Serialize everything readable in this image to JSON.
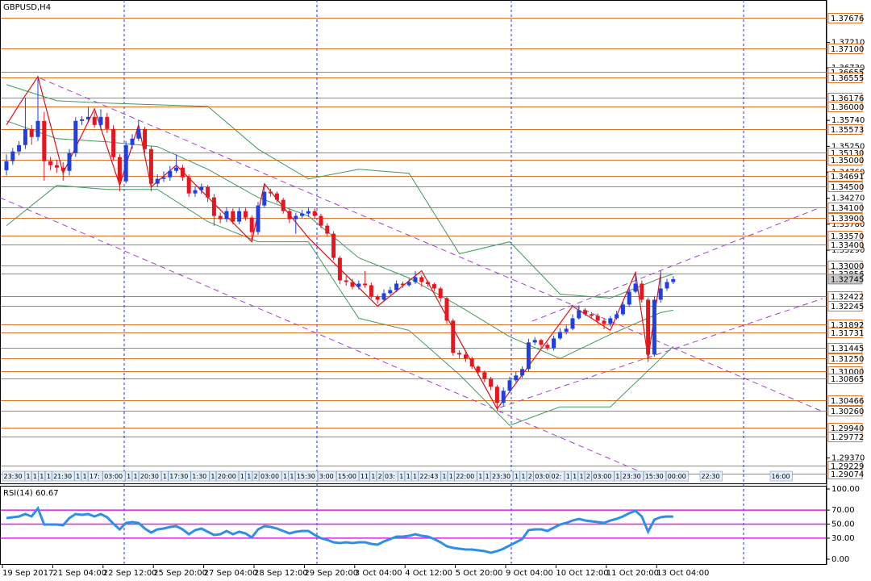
{
  "chart_data": [
    {
      "type": "candlestick",
      "title": "GBPUSD,H4",
      "categories": [
        "19 Sep 2017",
        null,
        null,
        null,
        null,
        null,
        null,
        null,
        "21 Sep 04:00",
        null,
        null,
        null,
        null,
        null,
        null,
        null,
        "22 Sep 12:00",
        null,
        null,
        null,
        null,
        null,
        null,
        null,
        "25 Sep 20:00",
        null,
        null,
        null,
        null,
        null,
        null,
        null,
        "27 Sep 04:00",
        null,
        null,
        null,
        null,
        null,
        null,
        null,
        "28 Sep 12:00",
        null,
        null,
        null,
        null,
        null,
        null,
        null,
        "29 Sep 20:00",
        null,
        null,
        null,
        null,
        null,
        null,
        null,
        "3 Oct 04:00",
        null,
        null,
        null,
        null,
        null,
        null,
        null,
        "4 Oct 12:00",
        null,
        null,
        null,
        null,
        null,
        null,
        null,
        "5 Oct 20:00",
        null,
        null,
        null,
        null,
        null,
        null,
        null,
        "9 Oct 04:00",
        null,
        null,
        null,
        null,
        null,
        null,
        null,
        "10 Oct 12:00",
        null,
        null,
        null,
        null,
        null,
        null,
        null,
        "11 Oct 20:00",
        null,
        null,
        null,
        null,
        null,
        null,
        null,
        "13 Oct 04:00",
        null,
        null
      ],
      "open": [
        1.348,
        1.3497,
        1.35153,
        1.35274,
        1.35578,
        1.35426,
        1.3573,
        1.3497,
        1.34894,
        1.34849,
        1.34788,
        1.35122,
        1.3573,
        1.3576,
        1.35806,
        1.35654,
        1.35806,
        1.35578,
        1.35046,
        1.3459,
        1.35274,
        1.35396,
        1.35578,
        1.35198,
        1.34545,
        1.34636,
        1.34666,
        1.34788,
        1.34849,
        1.34666,
        1.34362,
        1.34423,
        1.34484,
        1.34286,
        1.33937,
        1.33876,
        1.34028,
        1.3383,
        1.34028,
        1.33906,
        1.33633,
        1.34134,
        1.34393,
        1.34362,
        1.34241,
        1.34028,
        1.33876,
        1.33937,
        1.33982,
        1.34028,
        1.33937,
        1.33754,
        1.33602,
        1.33146,
        1.32721,
        1.3269,
        1.32599,
        1.3266,
        1.3263,
        1.32417,
        1.32356,
        1.32478,
        1.32538,
        1.3266,
        1.3263,
        1.3269,
        1.32782,
        1.3269,
        1.3265,
        1.32569,
        1.32386,
        1.31961,
        1.31353,
        1.31322,
        1.31246,
        1.31094,
        1.30988,
        1.30866,
        1.30714,
        1.3041,
        1.30638,
        1.30836,
        1.30927,
        1.31049,
        1.3155,
        1.31596,
        1.31505,
        1.31444,
        1.31626,
        1.31748,
        1.31809,
        1.32006,
        1.32158,
        1.32082,
        1.32052,
        1.31961,
        1.319,
        1.32006,
        1.32082,
        1.32265,
        1.32508,
        1.3266,
        1.32356,
        1.31322,
        1.32356,
        1.32569,
        1.3269
      ],
      "high": [
        1.351,
        1.3522,
        1.3535,
        1.3617,
        1.3565,
        1.3657,
        1.359,
        1.3505,
        1.35,
        1.3495,
        1.352,
        1.358,
        1.3582,
        1.36,
        1.359,
        1.3595,
        1.3588,
        1.3565,
        1.351,
        1.3535,
        1.3548,
        1.3575,
        1.3562,
        1.3525,
        1.3472,
        1.3478,
        1.3488,
        1.351,
        1.349,
        1.3472,
        1.345,
        1.3455,
        1.3452,
        1.3435,
        1.34,
        1.341,
        1.3408,
        1.341,
        1.341,
        1.3395,
        1.342,
        1.3452,
        1.3445,
        1.344,
        1.3428,
        1.3408,
        1.34,
        1.3405,
        1.341,
        1.3408,
        1.3398,
        1.338,
        1.3365,
        1.3318,
        1.328,
        1.3275,
        1.3272,
        1.329,
        1.3268,
        1.3245,
        1.3255,
        1.326,
        1.3272,
        1.327,
        1.3275,
        1.329,
        1.3282,
        1.3272,
        1.3268,
        1.326,
        1.3242,
        1.32,
        1.314,
        1.3138,
        1.3128,
        1.3112,
        1.3102,
        1.309,
        1.3075,
        1.307,
        1.309,
        1.31,
        1.311,
        1.3162,
        1.3165,
        1.3162,
        1.3155,
        1.3168,
        1.3182,
        1.3188,
        1.3208,
        1.3225,
        1.322,
        1.3212,
        1.321,
        1.32,
        1.3205,
        1.3215,
        1.3232,
        1.3258,
        1.3285,
        1.3272,
        1.324,
        1.3242,
        1.329,
        1.3275,
        1.328
      ],
      "low": [
        1.347,
        1.349,
        1.3508,
        1.352,
        1.3528,
        1.3535,
        1.346,
        1.348,
        1.3475,
        1.346,
        1.347,
        1.3505,
        1.3565,
        1.357,
        1.356,
        1.3555,
        1.355,
        1.3498,
        1.344,
        1.3455,
        1.352,
        1.3535,
        1.3512,
        1.344,
        1.3448,
        1.3458,
        1.346,
        1.3475,
        1.346,
        1.343,
        1.343,
        1.3435,
        1.342,
        1.3375,
        1.338,
        1.3382,
        1.3378,
        1.3378,
        1.3385,
        1.3345,
        1.3358,
        1.341,
        1.343,
        1.3418,
        1.3398,
        1.338,
        1.336,
        1.339,
        1.3392,
        1.3388,
        1.337,
        1.3355,
        1.331,
        1.3265,
        1.3262,
        1.3255,
        1.3255,
        1.3258,
        1.3238,
        1.3228,
        1.3232,
        1.3245,
        1.325,
        1.3258,
        1.326,
        1.3265,
        1.326,
        1.326,
        1.3252,
        1.3232,
        1.319,
        1.313,
        1.3125,
        1.3118,
        1.3105,
        1.3092,
        1.308,
        1.3065,
        1.3026,
        1.3035,
        1.306,
        1.308,
        1.3088,
        1.31,
        1.315,
        1.3145,
        1.314,
        1.314,
        1.316,
        1.317,
        1.3178,
        1.3198,
        1.3205,
        1.32,
        1.319,
        1.318,
        1.3185,
        1.3198,
        1.3205,
        1.3222,
        1.3248,
        1.323,
        1.3118,
        1.3128,
        1.323,
        1.3252,
        1.3265
      ],
      "close": [
        1.3497,
        1.35153,
        1.35274,
        1.35578,
        1.35426,
        1.3573,
        1.3497,
        1.34894,
        1.34849,
        1.34788,
        1.35122,
        1.3573,
        1.3576,
        1.35806,
        1.35654,
        1.35806,
        1.35578,
        1.35046,
        1.3459,
        1.35274,
        1.35396,
        1.35578,
        1.35198,
        1.34545,
        1.34636,
        1.34666,
        1.34788,
        1.34849,
        1.34666,
        1.34362,
        1.34423,
        1.34484,
        1.34286,
        1.33937,
        1.33876,
        1.34028,
        1.3383,
        1.34028,
        1.33906,
        1.33633,
        1.34134,
        1.34393,
        1.34362,
        1.34241,
        1.34028,
        1.33876,
        1.33937,
        1.33982,
        1.34028,
        1.33937,
        1.33754,
        1.33602,
        1.33146,
        1.32721,
        1.3269,
        1.32599,
        1.3266,
        1.3263,
        1.32417,
        1.32356,
        1.32478,
        1.32538,
        1.3266,
        1.3263,
        1.3269,
        1.32782,
        1.3269,
        1.3265,
        1.32569,
        1.32386,
        1.31961,
        1.31353,
        1.31322,
        1.31246,
        1.31094,
        1.30988,
        1.30866,
        1.30714,
        1.3041,
        1.30638,
        1.30836,
        1.30927,
        1.31049,
        1.3155,
        1.31596,
        1.31505,
        1.31444,
        1.31626,
        1.31748,
        1.31809,
        1.32006,
        1.32158,
        1.32082,
        1.32052,
        1.31961,
        1.319,
        1.32006,
        1.32082,
        1.32265,
        1.32508,
        1.3266,
        1.32356,
        1.31322,
        1.32356,
        1.32569,
        1.3269,
        1.32745
      ],
      "up_color": "#1f3fe0",
      "down_color": "#e8141e",
      "ylim": [
        1.28876,
        1.38011
      ],
      "yticks": [
        {
          "value": 1.3721,
          "label": "1.37210"
        },
        {
          "value": 1.3673,
          "label": "1.36730"
        },
        {
          "value": 1.3574,
          "label": "1.35740"
        },
        {
          "value": 1.3525,
          "label": "1.35250"
        },
        {
          "value": 1.3476,
          "label": "1.34760"
        },
        {
          "value": 1.3427,
          "label": "1.34270"
        },
        {
          "value": 1.3378,
          "label": "1.33780"
        },
        {
          "value": 1.3329,
          "label": "1.33290"
        },
        {
          "value": 1.2937,
          "label": "1.29370"
        }
      ],
      "levels": [
        {
          "value": 1.37676,
          "label": "1.37676"
        },
        {
          "value": 1.371,
          "label": "1.37100"
        },
        {
          "value": 1.36655,
          "label": "1.36655"
        },
        {
          "value": 1.36555,
          "label": "1.36555"
        },
        {
          "value": 1.36176,
          "label": "1.36176"
        },
        {
          "value": 1.36,
          "label": "1.36000"
        },
        {
          "value": 1.35573,
          "label": "1.35573"
        },
        {
          "value": 1.3513,
          "label": "1.35130"
        },
        {
          "value": 1.35,
          "label": "1.35000"
        },
        {
          "value": 1.34691,
          "label": "1.34691"
        },
        {
          "value": 1.345,
          "label": "1.34500"
        },
        {
          "value": 1.341,
          "label": "1.34100"
        },
        {
          "value": 1.339,
          "label": "1.33900"
        },
        {
          "value": 1.3357,
          "label": "1.33570"
        },
        {
          "value": 1.334,
          "label": "1.33400"
        },
        {
          "value": 1.33,
          "label": "1.33000"
        },
        {
          "value": 1.32856,
          "label": "1.32856"
        },
        {
          "value": 1.32422,
          "label": "1.32422"
        },
        {
          "value": 1.32245,
          "label": "1.32245"
        },
        {
          "value": 1.31892,
          "label": "1.31892"
        },
        {
          "value": 1.31731,
          "label": "1.31731"
        },
        {
          "value": 1.31445,
          "label": "1.31445"
        },
        {
          "value": 1.3125,
          "label": "1.31250"
        },
        {
          "value": 1.31,
          "label": "1.31000"
        },
        {
          "value": 1.30865,
          "label": "1.30865"
        },
        {
          "value": 1.30466,
          "label": "1.30466"
        },
        {
          "value": 1.3026,
          "label": "1.30260"
        },
        {
          "value": 1.2994,
          "label": "1.29940"
        },
        {
          "value": 1.29772,
          "label": "1.29772"
        },
        {
          "value": 1.29229,
          "label": "1.29229"
        },
        {
          "value": 1.29074,
          "label": "1.29074"
        }
      ],
      "level_color": "#d9772b",
      "current_price": {
        "value": 1.32745,
        "label": "1.32745"
      },
      "bands": {
        "x": [
          0,
          8,
          16,
          24,
          32,
          40,
          48,
          56,
          64,
          72,
          80,
          88,
          96,
          104,
          106
        ],
        "upper": [
          1.36414,
          1.3611,
          1.36065,
          1.36034,
          1.36004,
          1.35198,
          1.34636,
          1.34818,
          1.34742,
          1.33222,
          1.3345,
          1.32462,
          1.32386,
          1.32766,
          1.32842
        ],
        "middle": [
          1.3573,
          1.35396,
          1.35335,
          1.35244,
          1.34818,
          1.34286,
          1.33937,
          1.33146,
          1.32766,
          1.32234,
          1.31657,
          1.31246,
          1.31702,
          1.32113,
          1.32158
        ],
        "lower": [
          1.33754,
          1.34514,
          1.34438,
          1.34438,
          1.3383,
          1.3345,
          1.3345,
          1.32006,
          1.31778,
          1.30942,
          1.29985,
          1.30334,
          1.30334,
          1.31246,
          1.31474
        ],
        "color": "#3f9a5c"
      },
      "zigzag": {
        "x": [
          0,
          2,
          5,
          9,
          14,
          18,
          21,
          23,
          27,
          39,
          41,
          48,
          59,
          66,
          78,
          90,
          96,
          100,
          102,
          104
        ],
        "values": [
          1.35654,
          1.36034,
          1.36566,
          1.34742,
          1.35958,
          1.34514,
          1.35654,
          1.34484,
          1.34894,
          1.3345,
          1.34545,
          1.33526,
          1.32234,
          1.32903,
          1.30296,
          1.32234,
          1.31778,
          1.32873,
          1.31246,
          1.32842
        ],
        "color": "#e01010"
      },
      "trade_labels": [
        [
          "23:30",
          "1",
          "1",
          "1",
          "1",
          "21:30",
          "1",
          "1",
          "17:",
          "03:00",
          "1",
          "1",
          "20:30",
          "1",
          "17:30",
          "1:30",
          "1",
          "20:00",
          "1",
          "1",
          "2",
          "03:00",
          "1",
          "1",
          "15:30",
          "3:00",
          "15:00",
          "11",
          "1",
          "2",
          "03:",
          "1",
          "1",
          "1",
          "22:43",
          "1",
          "1",
          "22:00",
          "1",
          "1",
          "23:30",
          "1",
          "1",
          "2",
          "03:00"
        ],
        [
          "02:",
          "1",
          "1",
          "1",
          "2",
          "03:00",
          "1",
          "23:30",
          "15:30",
          "00:00"
        ],
        [
          "22:30"
        ],
        [
          "16:00"
        ]
      ]
    },
    {
      "type": "line",
      "title": "RSI(14) 60.67",
      "values": [
        58.6,
        59.8,
        60.9,
        64.4,
        60.9,
        72.4,
        49.4,
        49.4,
        49.4,
        48.3,
        58.6,
        64.4,
        63.2,
        64.4,
        60.9,
        64.4,
        59.8,
        50.6,
        42.5,
        51.7,
        52.9,
        51.7,
        43.7,
        37.9,
        42.5,
        43.7,
        46.0,
        47.1,
        42.5,
        35.6,
        41.4,
        43.7,
        39.1,
        34.5,
        35.6,
        40.2,
        35.6,
        39.1,
        36.8,
        31.0,
        42.5,
        47.1,
        46.0,
        43.7,
        40.2,
        36.8,
        39.1,
        40.2,
        40.2,
        34.5,
        29.9,
        27.6,
        24.1,
        23.0,
        24.1,
        23.0,
        24.1,
        24.1,
        21.8,
        20.7,
        25.3,
        28.7,
        32.2,
        32.2,
        33.3,
        35.6,
        33.3,
        32.2,
        28.7,
        24.1,
        18.4,
        16.1,
        14.9,
        13.8,
        13.8,
        12.6,
        11.5,
        9.2,
        11.5,
        14.9,
        19.5,
        24.1,
        28.7,
        41.4,
        42.5,
        42.5,
        40.2,
        44.8,
        49.4,
        51.7,
        55.2,
        57.5,
        55.2,
        54.0,
        52.9,
        51.7,
        55.2,
        57.5,
        60.9,
        65.5,
        69.0,
        60.9,
        39.1,
        56.3,
        59.8,
        60.9,
        60.67
      ],
      "color": "#2f8fe6",
      "ylim": [
        -8.05,
        104.6
      ],
      "yticks": [
        {
          "value": 100,
          "label": "100.00"
        },
        {
          "value": 70,
          "label": "70.00"
        },
        {
          "value": 50,
          "label": "50.00"
        },
        {
          "value": 30,
          "label": "30.00"
        },
        {
          "value": 0,
          "label": "0.00"
        }
      ],
      "levels": [
        70,
        50,
        30
      ],
      "level_color": "#e020e0"
    }
  ]
}
